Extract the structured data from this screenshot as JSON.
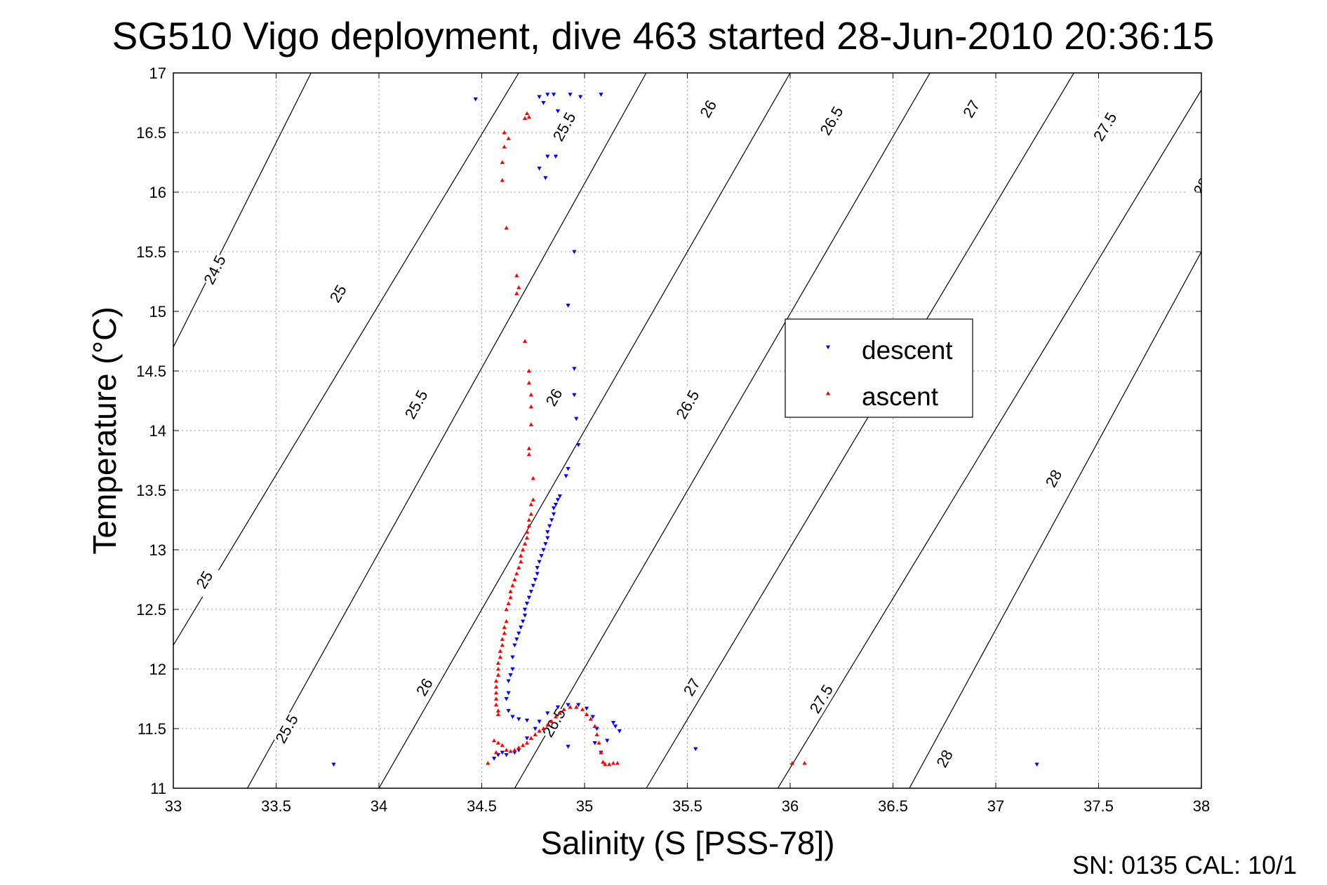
{
  "title": "SG510 Vigo deployment, dive 463 started 28-Jun-2010 20:36:15",
  "footer": "SN: 0135  CAL: 10/1",
  "chart_data": {
    "type": "scatter",
    "title": "SG510 Vigo deployment, dive 463 started 28-Jun-2010 20:36:15",
    "xlabel": "Salinity (S [PSS-78])",
    "ylabel": "Temperature (°C)",
    "xlim": [
      33,
      38
    ],
    "ylim": [
      11,
      17
    ],
    "xticks": [
      33,
      33.5,
      34,
      34.5,
      35,
      35.5,
      36,
      36.5,
      37,
      37.5,
      38
    ],
    "yticks": [
      11,
      11.5,
      12,
      12.5,
      13,
      13.5,
      14,
      14.5,
      15,
      15.5,
      16,
      16.5,
      17
    ],
    "grid": true,
    "legend_position": "right-center",
    "colors": {
      "descent": "#0000ff",
      "ascent": "#ff0000",
      "contour": "#000000"
    },
    "contours": [
      {
        "label": "24.5",
        "points": [
          [
            33,
            14.7
          ],
          [
            33.67,
            17
          ]
        ],
        "labels_at": [
          [
            33.2,
            15.35
          ]
        ]
      },
      {
        "label": "25",
        "points": [
          [
            33,
            12.2
          ],
          [
            34.68,
            17
          ]
        ],
        "labels_at": [
          [
            33.15,
            12.75
          ],
          [
            33.8,
            15.15
          ]
        ]
      },
      {
        "label": "25.5",
        "points": [
          [
            33.36,
            11
          ],
          [
            35.3,
            17
          ]
        ],
        "labels_at": [
          [
            33.55,
            11.5
          ],
          [
            34.18,
            14.22
          ],
          [
            34.9,
            16.55
          ]
        ]
      },
      {
        "label": "26",
        "points": [
          [
            34.0,
            11
          ],
          [
            36.0,
            17
          ]
        ],
        "labels_at": [
          [
            34.22,
            11.85
          ],
          [
            34.85,
            14.28
          ],
          [
            35.6,
            16.7
          ]
        ]
      },
      {
        "label": "26.5",
        "points": [
          [
            34.66,
            11
          ],
          [
            36.68,
            17
          ]
        ],
        "labels_at": [
          [
            34.85,
            11.55
          ],
          [
            35.5,
            14.22
          ],
          [
            36.2,
            16.6
          ]
        ]
      },
      {
        "label": "27",
        "points": [
          [
            35.3,
            11
          ],
          [
            37.38,
            17
          ]
        ],
        "labels_at": [
          [
            35.52,
            11.85
          ],
          [
            36.88,
            16.7
          ]
        ]
      },
      {
        "label": "27.5",
        "points": [
          [
            35.94,
            11
          ],
          [
            38.05,
            17
          ]
        ],
        "labels_at": [
          [
            36.15,
            11.75
          ],
          [
            37.53,
            16.55
          ]
        ]
      },
      {
        "label": "28",
        "points": [
          [
            36.58,
            11
          ],
          [
            38,
            15.5
          ]
        ],
        "labels_at": [
          [
            36.75,
            11.25
          ],
          [
            37.28,
            13.6
          ],
          [
            38,
            16.05
          ]
        ]
      }
    ],
    "series": [
      {
        "name": "descent",
        "marker": "triangle-down",
        "points": [
          [
            34.47,
            16.78
          ],
          [
            34.78,
            16.8
          ],
          [
            34.82,
            16.82
          ],
          [
            34.85,
            16.82
          ],
          [
            34.93,
            16.82
          ],
          [
            34.98,
            16.8
          ],
          [
            35.08,
            16.82
          ],
          [
            34.8,
            16.75
          ],
          [
            34.87,
            16.68
          ],
          [
            34.82,
            16.3
          ],
          [
            34.78,
            16.2
          ],
          [
            34.86,
            16.3
          ],
          [
            34.81,
            16.12
          ],
          [
            34.95,
            15.5
          ],
          [
            34.92,
            15.05
          ],
          [
            34.95,
            14.52
          ],
          [
            34.95,
            14.3
          ],
          [
            34.96,
            14.1
          ],
          [
            34.97,
            13.88
          ],
          [
            34.92,
            13.68
          ],
          [
            34.91,
            13.62
          ],
          [
            34.88,
            13.45
          ],
          [
            34.87,
            13.42
          ],
          [
            34.86,
            13.38
          ],
          [
            34.85,
            13.35
          ],
          [
            34.85,
            13.3
          ],
          [
            34.84,
            13.25
          ],
          [
            34.83,
            13.2
          ],
          [
            34.82,
            13.15
          ],
          [
            34.82,
            13.1
          ],
          [
            34.81,
            13.05
          ],
          [
            34.8,
            13.0
          ],
          [
            34.79,
            12.95
          ],
          [
            34.78,
            12.9
          ],
          [
            34.77,
            12.85
          ],
          [
            34.77,
            12.8
          ],
          [
            34.76,
            12.75
          ],
          [
            34.75,
            12.7
          ],
          [
            34.74,
            12.65
          ],
          [
            34.73,
            12.6
          ],
          [
            34.72,
            12.55
          ],
          [
            34.71,
            12.5
          ],
          [
            34.71,
            12.45
          ],
          [
            34.7,
            12.4
          ],
          [
            34.69,
            12.35
          ],
          [
            34.68,
            12.3
          ],
          [
            34.67,
            12.25
          ],
          [
            34.66,
            12.2
          ],
          [
            34.65,
            12.1
          ],
          [
            34.65,
            12.0
          ],
          [
            34.64,
            11.95
          ],
          [
            34.63,
            11.9
          ],
          [
            34.63,
            11.8
          ],
          [
            34.62,
            11.75
          ],
          [
            34.63,
            11.65
          ],
          [
            34.65,
            11.6
          ],
          [
            34.68,
            11.58
          ],
          [
            34.72,
            11.57
          ],
          [
            34.6,
            11.3
          ],
          [
            34.62,
            11.28
          ],
          [
            34.66,
            11.3
          ],
          [
            34.68,
            11.32
          ],
          [
            34.56,
            11.25
          ],
          [
            34.58,
            11.28
          ],
          [
            34.72,
            11.42
          ],
          [
            34.76,
            11.5
          ],
          [
            34.78,
            11.56
          ],
          [
            34.82,
            11.63
          ],
          [
            34.87,
            11.68
          ],
          [
            34.92,
            11.7
          ],
          [
            34.97,
            11.7
          ],
          [
            35.01,
            11.67
          ],
          [
            35.04,
            11.6
          ],
          [
            35.06,
            11.5
          ],
          [
            35.15,
            11.52
          ],
          [
            35.17,
            11.48
          ],
          [
            35.14,
            11.55
          ],
          [
            35.11,
            11.4
          ],
          [
            35.05,
            11.38
          ],
          [
            35.08,
            11.3
          ],
          [
            34.92,
            11.35
          ],
          [
            35.54,
            11.33
          ],
          [
            33.78,
            11.2
          ],
          [
            37.2,
            11.2
          ]
        ]
      },
      {
        "name": "ascent",
        "marker": "triangle-up",
        "points": [
          [
            34.72,
            16.66
          ],
          [
            34.73,
            16.63
          ],
          [
            34.71,
            16.62
          ],
          [
            34.61,
            16.5
          ],
          [
            34.63,
            16.45
          ],
          [
            34.61,
            16.38
          ],
          [
            34.6,
            16.25
          ],
          [
            34.6,
            16.1
          ],
          [
            34.62,
            15.7
          ],
          [
            34.67,
            15.3
          ],
          [
            34.68,
            15.2
          ],
          [
            34.67,
            15.15
          ],
          [
            34.71,
            14.75
          ],
          [
            34.73,
            14.5
          ],
          [
            34.73,
            14.4
          ],
          [
            34.74,
            14.3
          ],
          [
            34.74,
            14.2
          ],
          [
            34.74,
            14.05
          ],
          [
            34.73,
            13.85
          ],
          [
            34.73,
            13.8
          ],
          [
            34.75,
            13.6
          ],
          [
            34.75,
            13.42
          ],
          [
            34.74,
            13.38
          ],
          [
            34.74,
            13.3
          ],
          [
            34.73,
            13.25
          ],
          [
            34.73,
            13.2
          ],
          [
            34.72,
            13.15
          ],
          [
            34.72,
            13.1
          ],
          [
            34.71,
            13.05
          ],
          [
            34.7,
            13.0
          ],
          [
            34.69,
            12.95
          ],
          [
            34.69,
            12.9
          ],
          [
            34.68,
            12.85
          ],
          [
            34.67,
            12.8
          ],
          [
            34.66,
            12.75
          ],
          [
            34.65,
            12.7
          ],
          [
            34.64,
            12.65
          ],
          [
            34.64,
            12.6
          ],
          [
            34.63,
            12.55
          ],
          [
            34.62,
            12.5
          ],
          [
            34.62,
            12.4
          ],
          [
            34.61,
            12.35
          ],
          [
            34.61,
            12.3
          ],
          [
            34.6,
            12.25
          ],
          [
            34.6,
            12.2
          ],
          [
            34.59,
            12.15
          ],
          [
            34.59,
            12.1
          ],
          [
            34.58,
            12.05
          ],
          [
            34.58,
            12.0
          ],
          [
            34.58,
            11.95
          ],
          [
            34.57,
            11.9
          ],
          [
            34.57,
            11.85
          ],
          [
            34.57,
            11.8
          ],
          [
            34.57,
            11.75
          ],
          [
            34.57,
            11.7
          ],
          [
            34.58,
            11.65
          ],
          [
            34.58,
            11.62
          ],
          [
            34.56,
            11.4
          ],
          [
            34.58,
            11.38
          ],
          [
            34.6,
            11.36
          ],
          [
            34.62,
            11.32
          ],
          [
            34.64,
            11.31
          ],
          [
            34.66,
            11.32
          ],
          [
            34.68,
            11.34
          ],
          [
            34.7,
            11.36
          ],
          [
            34.72,
            11.38
          ],
          [
            34.74,
            11.42
          ],
          [
            34.76,
            11.45
          ],
          [
            34.78,
            11.48
          ],
          [
            34.8,
            11.5
          ],
          [
            34.82,
            11.53
          ],
          [
            34.84,
            11.56
          ],
          [
            34.86,
            11.6
          ],
          [
            34.88,
            11.63
          ],
          [
            34.9,
            11.66
          ],
          [
            34.93,
            11.68
          ],
          [
            34.96,
            11.68
          ],
          [
            34.99,
            11.66
          ],
          [
            35.01,
            11.62
          ],
          [
            35.03,
            11.58
          ],
          [
            35.05,
            11.52
          ],
          [
            35.06,
            11.45
          ],
          [
            35.07,
            11.38
          ],
          [
            35.08,
            11.3
          ],
          [
            35.09,
            11.22
          ],
          [
            35.1,
            11.2
          ],
          [
            35.12,
            11.2
          ],
          [
            35.14,
            11.21
          ],
          [
            35.16,
            11.21
          ],
          [
            34.53,
            11.21
          ],
          [
            34.57,
            11.3
          ],
          [
            36.01,
            11.21
          ],
          [
            36.07,
            11.21
          ]
        ]
      }
    ]
  }
}
